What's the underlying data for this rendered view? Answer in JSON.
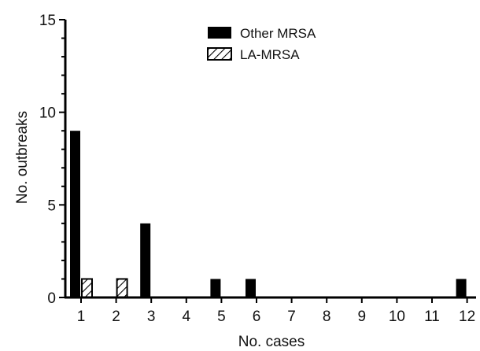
{
  "chart_data": {
    "type": "bar",
    "categories": [
      "1",
      "2",
      "3",
      "4",
      "5",
      "6",
      "7",
      "8",
      "9",
      "10",
      "11",
      "12"
    ],
    "series": [
      {
        "name": "Other MRSA",
        "values": [
          9,
          0,
          4,
          0,
          1,
          1,
          0,
          0,
          0,
          0,
          0,
          1
        ],
        "color": "#000000",
        "pattern": "solid"
      },
      {
        "name": "LA-MRSA",
        "values": [
          1,
          1,
          0,
          0,
          0,
          0,
          0,
          0,
          0,
          0,
          0,
          0
        ],
        "color": "#000000",
        "pattern": "hatched"
      }
    ],
    "xlabel": "No. cases",
    "ylabel": "No. outbreaks",
    "ylim": [
      0,
      15
    ],
    "yticks": [
      0,
      5,
      10,
      15
    ],
    "grid": false,
    "legend_position": "top-center"
  }
}
